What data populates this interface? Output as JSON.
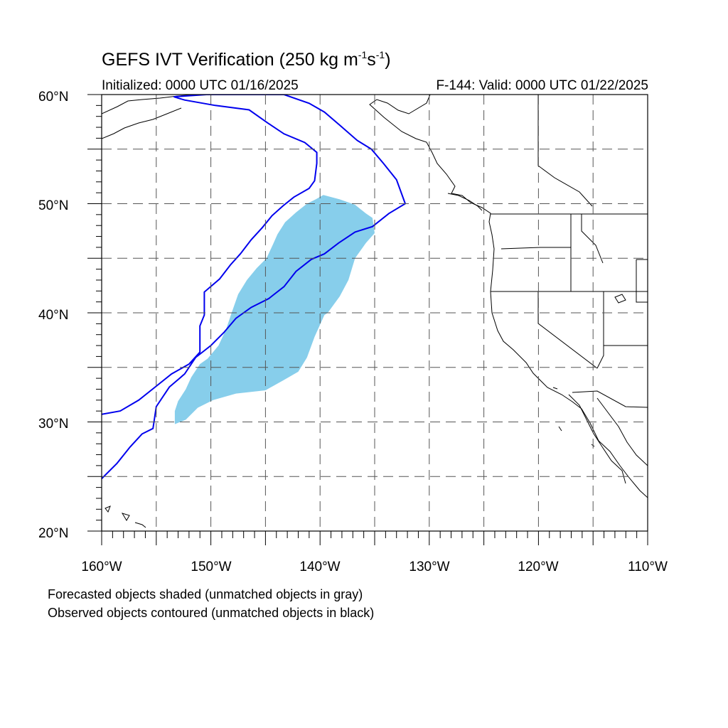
{
  "title": {
    "text": "GEFS IVT Verification (250 kg m",
    "sup1": "-1",
    "mid": "s",
    "sup2": "-1",
    "end": ")"
  },
  "initialized": "Initialized: 0000 UTC 01/16/2025",
  "valid": "F-144: Valid: 0000 UTC 01/22/2025",
  "lat_labels": [
    "60°N",
    "50°N",
    "40°N",
    "30°N",
    "20°N"
  ],
  "lon_labels": [
    "160°W",
    "150°W",
    "140°W",
    "130°W",
    "120°W",
    "110°W"
  ],
  "footer": {
    "line1": "Forecasted objects shaded (unmatched objects in gray)",
    "line2": "Observed objects contoured (unmatched objects in black)"
  },
  "colors": {
    "forecast_fill": "#87ceeb",
    "observed_contour": "#0000ee",
    "coastline": "#000000",
    "grid": "#555555"
  },
  "map": {
    "lon_range": [
      -160,
      -110
    ],
    "lat_range": [
      20,
      60
    ],
    "grid_lons": [
      -155,
      -150,
      -145,
      -140,
      -135,
      -130,
      -125,
      -120,
      -115
    ],
    "grid_lats": [
      25,
      30,
      35,
      40,
      45,
      50,
      55
    ],
    "forecast_object": [
      [
        -153.3,
        29.8
      ],
      [
        -152.3,
        30.2
      ],
      [
        -151.2,
        31.3
      ],
      [
        -149.8,
        32.0
      ],
      [
        -147.7,
        32.6
      ],
      [
        -145.0,
        32.9
      ],
      [
        -143.4,
        33.8
      ],
      [
        -142.0,
        34.6
      ],
      [
        -141.2,
        35.9
      ],
      [
        -140.5,
        37.8
      ],
      [
        -139.6,
        39.8
      ],
      [
        -139.3,
        40.0
      ],
      [
        -138.2,
        41.5
      ],
      [
        -137.4,
        43.0
      ],
      [
        -136.8,
        45.0
      ],
      [
        -135.8,
        46.4
      ],
      [
        -135.0,
        47.3
      ],
      [
        -135.2,
        48.7
      ],
      [
        -135.8,
        49.1
      ],
      [
        -136.8,
        49.9
      ],
      [
        -138.2,
        50.4
      ],
      [
        -139.7,
        50.8
      ],
      [
        -140.4,
        50.4
      ],
      [
        -141.2,
        50.0
      ],
      [
        -142.2,
        49.2
      ],
      [
        -143.2,
        48.3
      ],
      [
        -143.9,
        47.2
      ],
      [
        -144.3,
        46.3
      ],
      [
        -144.9,
        45.0
      ],
      [
        -145.8,
        44.1
      ],
      [
        -146.7,
        43.0
      ],
      [
        -147.5,
        41.7
      ],
      [
        -148.1,
        40.0
      ],
      [
        -148.6,
        38.5
      ],
      [
        -149.3,
        37.0
      ],
      [
        -150.3,
        35.8
      ],
      [
        -151.0,
        35.3
      ],
      [
        -151.8,
        34.1
      ],
      [
        -152.3,
        33.0
      ],
      [
        -153.0,
        31.9
      ],
      [
        -153.3,
        31.0
      ]
    ],
    "observed_objects": [
      [
        [
          -160.0,
          30.7
        ],
        [
          -158.3,
          31.0
        ],
        [
          -156.6,
          32.0
        ],
        [
          -155.1,
          33.2
        ],
        [
          -153.6,
          34.4
        ],
        [
          -152.0,
          35.3
        ],
        [
          -151.0,
          36.4
        ],
        [
          -151.0,
          38.8
        ],
        [
          -150.6,
          39.8
        ],
        [
          -150.6,
          41.9
        ],
        [
          -149.2,
          43.1
        ],
        [
          -148.2,
          44.4
        ],
        [
          -147.3,
          45.4
        ],
        [
          -146.3,
          46.7
        ],
        [
          -145.3,
          47.8
        ],
        [
          -144.4,
          48.9
        ],
        [
          -143.4,
          49.8
        ],
        [
          -142.4,
          50.6
        ],
        [
          -141.0,
          51.4
        ],
        [
          -140.5,
          52.1
        ],
        [
          -140.3,
          53.7
        ],
        [
          -140.3,
          54.7
        ],
        [
          -141.4,
          55.6
        ],
        [
          -143.3,
          56.4
        ],
        [
          -144.8,
          57.4
        ],
        [
          -146.5,
          58.6
        ],
        [
          -149.6,
          59.0
        ],
        [
          -152.4,
          59.5
        ],
        [
          -153.4,
          59.8
        ],
        [
          -150.4,
          60.0
        ],
        [
          -143.3,
          60.0
        ],
        [
          -141.0,
          59.2
        ],
        [
          -139.6,
          58.4
        ],
        [
          -138.2,
          57.2
        ],
        [
          -136.6,
          55.8
        ],
        [
          -135.3,
          55.0
        ],
        [
          -134.2,
          53.7
        ],
        [
          -133.0,
          52.2
        ],
        [
          -132.2,
          50.0
        ],
        [
          -133.7,
          49.1
        ],
        [
          -135.2,
          47.9
        ],
        [
          -136.8,
          47.4
        ],
        [
          -138.3,
          46.4
        ],
        [
          -139.6,
          45.4
        ],
        [
          -140.8,
          44.9
        ],
        [
          -142.2,
          43.8
        ],
        [
          -143.3,
          42.4
        ],
        [
          -144.7,
          41.3
        ],
        [
          -146.3,
          40.5
        ],
        [
          -147.7,
          39.5
        ],
        [
          -148.8,
          38.2
        ],
        [
          -150.0,
          37.0
        ],
        [
          -151.4,
          35.9
        ],
        [
          -152.4,
          34.4
        ],
        [
          -153.8,
          33.2
        ],
        [
          -155.0,
          31.4
        ],
        [
          -155.3,
          29.4
        ],
        [
          -156.3,
          28.9
        ],
        [
          -157.4,
          27.7
        ],
        [
          -158.6,
          26.2
        ],
        [
          -160.0,
          24.8
        ]
      ]
    ]
  },
  "projection_note_hidden": ""
}
